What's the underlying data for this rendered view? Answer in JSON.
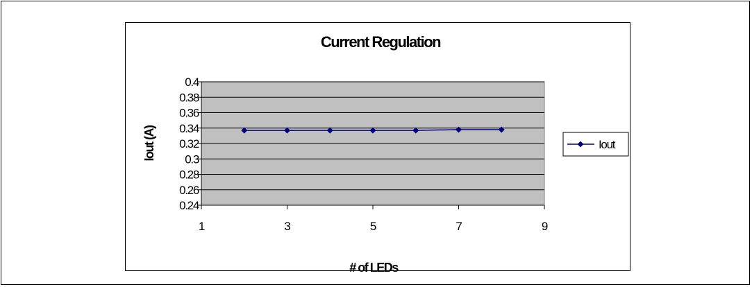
{
  "chart_data": {
    "type": "scatter",
    "title": "Current Regulation",
    "xlabel": "# of LEDs",
    "ylabel": "Iout (A)",
    "xlim": [
      1,
      9
    ],
    "ylim": [
      0.24,
      0.4
    ],
    "x_ticks": [
      "1",
      "3",
      "5",
      "7",
      "9"
    ],
    "y_ticks": [
      "0.24",
      "0.26",
      "0.28",
      "0.3",
      "0.32",
      "0.34",
      "0.36",
      "0.38",
      "0.4"
    ],
    "grid": true,
    "legend_position": "right",
    "plot_background": "#c0c0c0",
    "series": [
      {
        "name": "Iout",
        "color": "#000080",
        "marker": "diamond",
        "x": [
          2,
          3,
          4,
          5,
          6,
          7,
          8
        ],
        "y": [
          0.337,
          0.337,
          0.337,
          0.337,
          0.337,
          0.338,
          0.338
        ]
      }
    ]
  }
}
